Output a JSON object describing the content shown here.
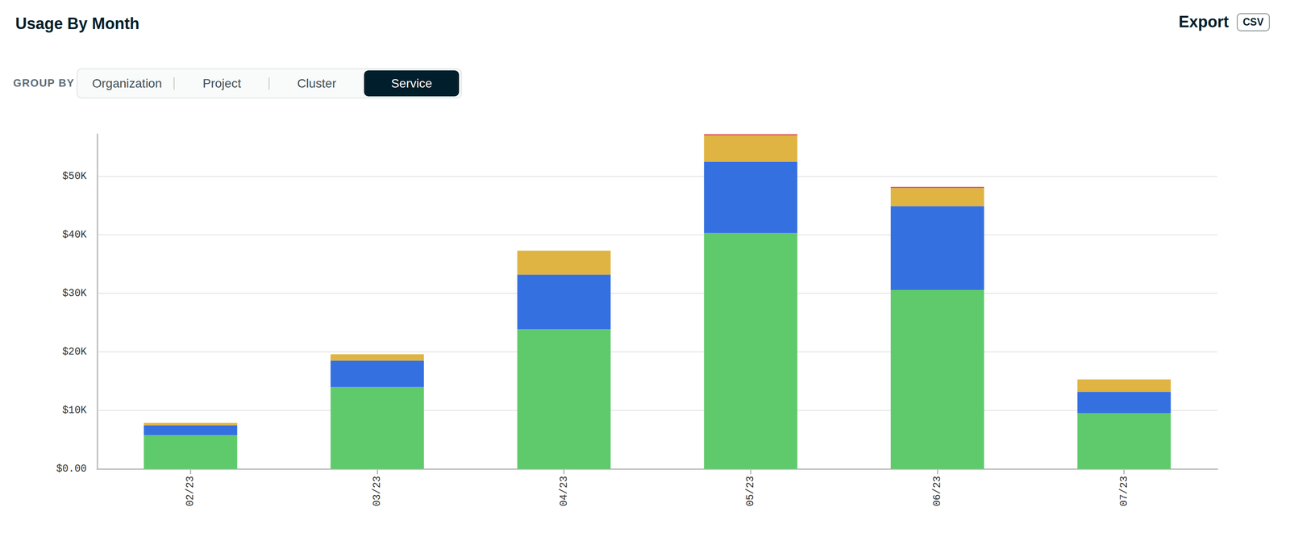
{
  "header": {
    "export_label": "Export",
    "export_format": "CSV"
  },
  "group_by": {
    "label": "GROUP BY",
    "options": [
      "Organization",
      "Project",
      "Cluster",
      "Service"
    ],
    "selected": "Service"
  },
  "chart_data": {
    "type": "bar",
    "title": "Usage By Month",
    "categories": [
      "02/23",
      "03/23",
      "04/23",
      "05/23",
      "06/23",
      "07/23"
    ],
    "series": [
      {
        "color": "#5fca6b",
        "values": [
          5760,
          14000,
          23900,
          40300,
          30600,
          9550
        ]
      },
      {
        "color": "#3570e0",
        "values": [
          1700,
          4500,
          9300,
          12200,
          14300,
          3650
        ]
      },
      {
        "color": "#dfb442",
        "values": [
          400,
          1100,
          4100,
          4500,
          3100,
          2100
        ]
      },
      {
        "color": "#d9534f",
        "values": [
          0,
          0,
          0,
          200,
          200,
          0
        ]
      }
    ],
    "stacked": true,
    "ylim": [
      0,
      57200
    ],
    "yticks": [
      {
        "value": 0,
        "label": "$0.00"
      },
      {
        "value": 10000,
        "label": "$10K"
      },
      {
        "value": 20000,
        "label": "$20K"
      },
      {
        "value": 30000,
        "label": "$30K"
      },
      {
        "value": 40000,
        "label": "$40K"
      },
      {
        "value": 50000,
        "label": "$50K"
      }
    ],
    "grid": true
  }
}
